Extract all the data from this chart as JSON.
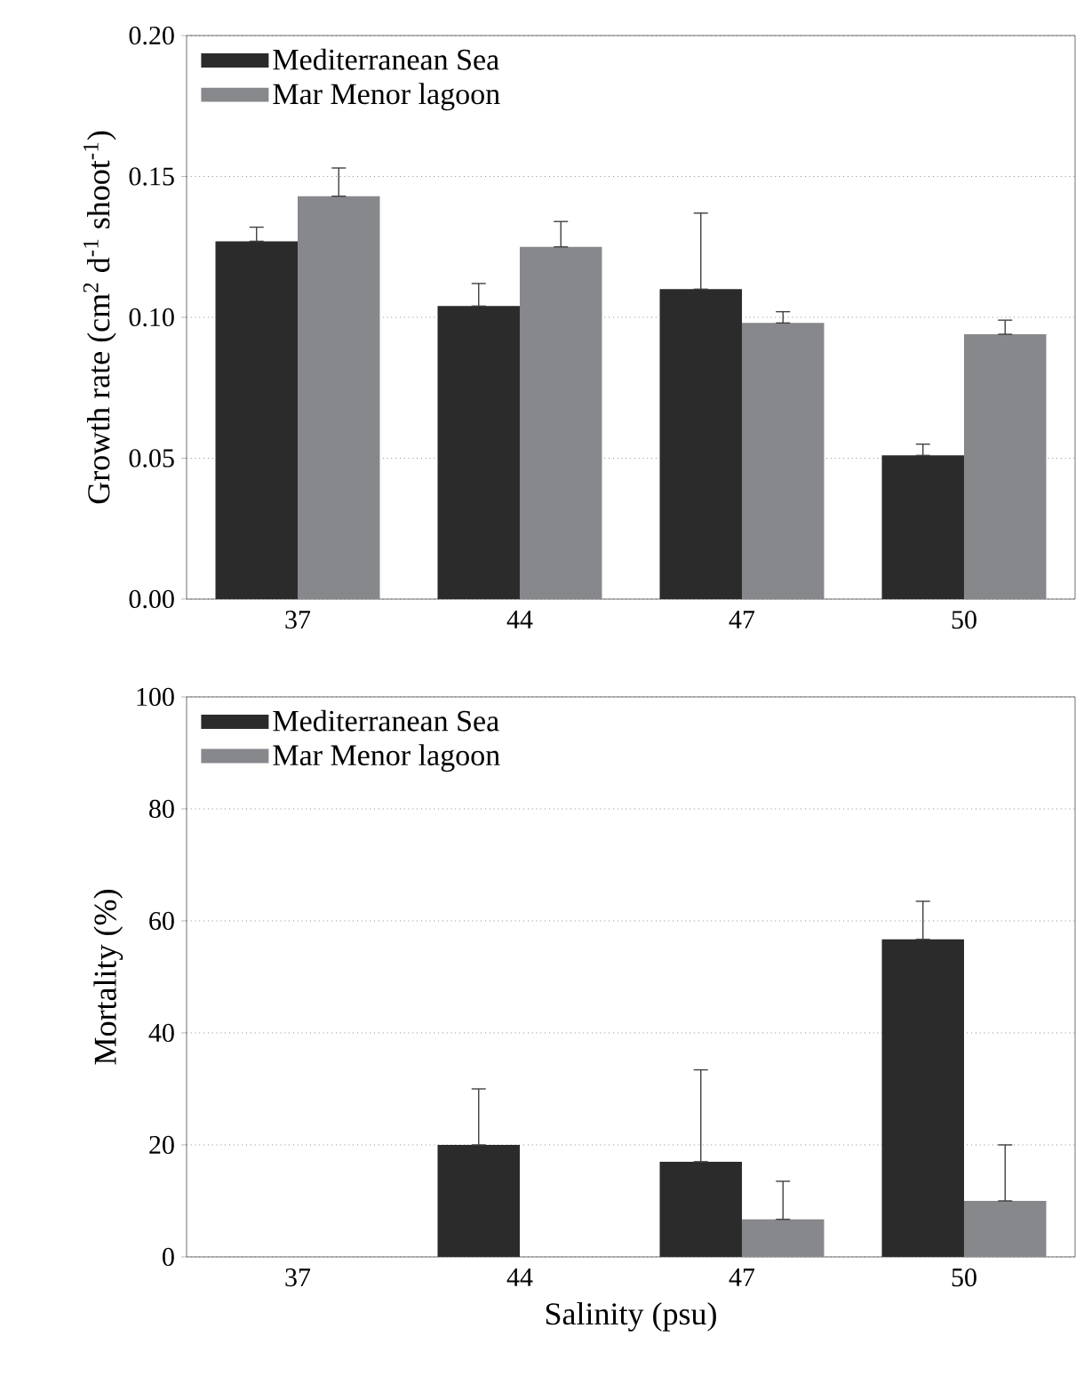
{
  "chart_data": [
    {
      "type": "bar",
      "ylabel": "Growth rate (cm$^{2}$ d$^{-1}$ shoot$^{-1}$)",
      "categories": [
        "37",
        "44",
        "47",
        "50"
      ],
      "series": [
        {
          "name": "Mediterranean Sea",
          "color": "#2b2b2b",
          "values": [
            0.127,
            0.104,
            0.11,
            0.051
          ],
          "errors": [
            [
              0.127,
              0.132
            ],
            [
              0.104,
              0.112
            ],
            [
              0.11,
              0.137
            ],
            [
              0.051,
              0.055
            ]
          ]
        },
        {
          "name": "Mar Menor lagoon",
          "color": "#87888c",
          "values": [
            0.143,
            0.125,
            0.098,
            0.094
          ],
          "errors": [
            [
              0.143,
              0.153
            ],
            [
              0.125,
              0.134
            ],
            [
              0.098,
              0.102
            ],
            [
              0.094,
              0.099
            ]
          ]
        }
      ],
      "ylim": [
        0,
        0.2
      ],
      "yticks": [
        {
          "value": 0,
          "label": "0.00"
        },
        {
          "value": 0.05,
          "label": "0.05"
        },
        {
          "value": 0.1,
          "label": "0.10"
        },
        {
          "value": 0.15,
          "label": "0.15"
        },
        {
          "value": 0.2,
          "label": "0.20"
        }
      ],
      "grid": "y",
      "legend": "top left"
    },
    {
      "type": "bar",
      "xlabel": "Salinity (psu)",
      "ylabel": "Mortality (%)",
      "categories": [
        "37",
        "44",
        "47",
        "50"
      ],
      "series": [
        {
          "name": "Mediterranean Sea",
          "color": "#2b2b2b",
          "values": [
            0,
            20,
            17,
            56.7
          ],
          "errors": [
            null,
            [
              20,
              30
            ],
            [
              17,
              33.4
            ],
            [
              56.7,
              63.5
            ]
          ]
        },
        {
          "name": "Mar Menor lagoon",
          "color": "#87888c",
          "values": [
            0,
            0,
            6.7,
            10
          ],
          "errors": [
            null,
            null,
            [
              6.7,
              13.5
            ],
            [
              10,
              20
            ]
          ]
        }
      ],
      "ylim": [
        0,
        100
      ],
      "yticks": [
        0,
        20,
        40,
        60,
        80,
        100
      ],
      "grid": "y",
      "legend": "top left"
    }
  ]
}
